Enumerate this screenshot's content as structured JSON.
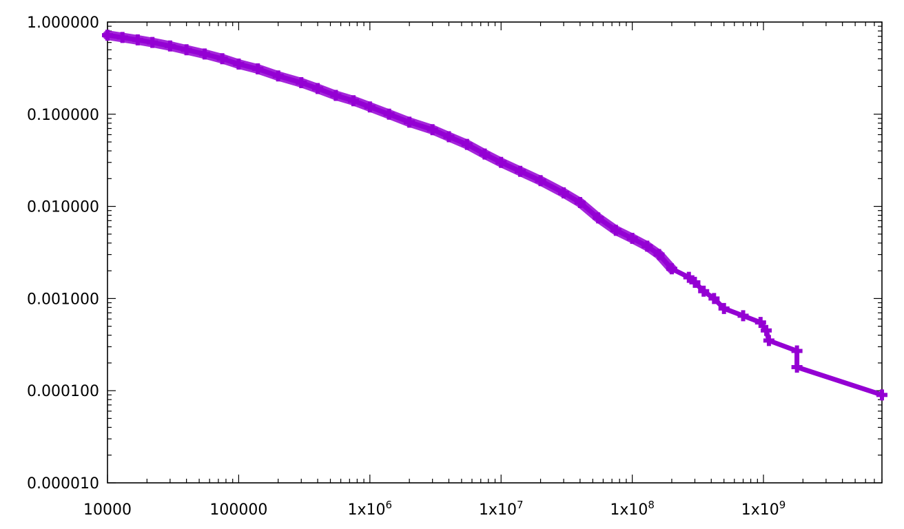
{
  "chart_data": {
    "type": "line",
    "title": "",
    "xlabel": "",
    "ylabel": "",
    "x_scale": "log",
    "y_scale": "log",
    "xlim": [
      10000,
      8000000000
    ],
    "ylim": [
      1e-05,
      1.0
    ],
    "grid": false,
    "legend": "none",
    "series_color": "#9400d3",
    "x_ticks": [
      {
        "value": 10000,
        "base": "10000",
        "sup": ""
      },
      {
        "value": 100000,
        "base": "100000",
        "sup": ""
      },
      {
        "value": 1000000,
        "base": "1x10",
        "sup": "6"
      },
      {
        "value": 10000000,
        "base": "1x10",
        "sup": "7"
      },
      {
        "value": 100000000,
        "base": "1x10",
        "sup": "8"
      },
      {
        "value": 1000000000,
        "base": "1x10",
        "sup": "9"
      }
    ],
    "y_ticks": [
      {
        "value": 1.0,
        "label": "1.000000"
      },
      {
        "value": 0.1,
        "label": "0.100000"
      },
      {
        "value": 0.01,
        "label": "0.010000"
      },
      {
        "value": 0.001,
        "label": "0.001000"
      },
      {
        "value": 0.0001,
        "label": "0.000100"
      },
      {
        "value": 1e-05,
        "label": "0.000010"
      }
    ],
    "series": [
      {
        "points": [
          [
            10000,
            0.72
          ],
          [
            13000,
            0.68
          ],
          [
            17000,
            0.64
          ],
          [
            22000,
            0.6
          ],
          [
            30000,
            0.55
          ],
          [
            40000,
            0.5
          ],
          [
            55000,
            0.45
          ],
          [
            75000,
            0.4
          ],
          [
            100000,
            0.35
          ],
          [
            140000,
            0.31
          ],
          [
            200000,
            0.26
          ],
          [
            300000,
            0.22
          ],
          [
            400000,
            0.19
          ],
          [
            550000,
            0.16
          ],
          [
            750000,
            0.14
          ],
          [
            1000000,
            0.12
          ],
          [
            1400000,
            0.1
          ],
          [
            2000000,
            0.082
          ],
          [
            3000000,
            0.068
          ],
          [
            4000000,
            0.057
          ],
          [
            5500000,
            0.047
          ],
          [
            7500000,
            0.037
          ],
          [
            10000000,
            0.03
          ],
          [
            14000000,
            0.024
          ],
          [
            20000000,
            0.019
          ],
          [
            30000000,
            0.014
          ],
          [
            40000000,
            0.011
          ],
          [
            55000000,
            0.0075
          ],
          [
            75000000,
            0.0055
          ],
          [
            100000000,
            0.0045
          ],
          [
            130000000,
            0.0037
          ],
          [
            160000000,
            0.003
          ],
          [
            200000000,
            0.0021
          ],
          [
            270000000,
            0.0017
          ],
          [
            300000000,
            0.0015
          ],
          [
            350000000,
            0.0012
          ],
          [
            420000000,
            0.001
          ],
          [
            500000000,
            0.00078
          ],
          [
            700000000,
            0.00065
          ],
          [
            950000000,
            0.00055
          ],
          [
            1050000000,
            0.00045
          ],
          [
            1100000000,
            0.00035
          ],
          [
            1800000000,
            0.00027
          ],
          [
            1800000000,
            0.00018
          ],
          [
            8000000000,
            9e-05
          ]
        ]
      }
    ]
  }
}
